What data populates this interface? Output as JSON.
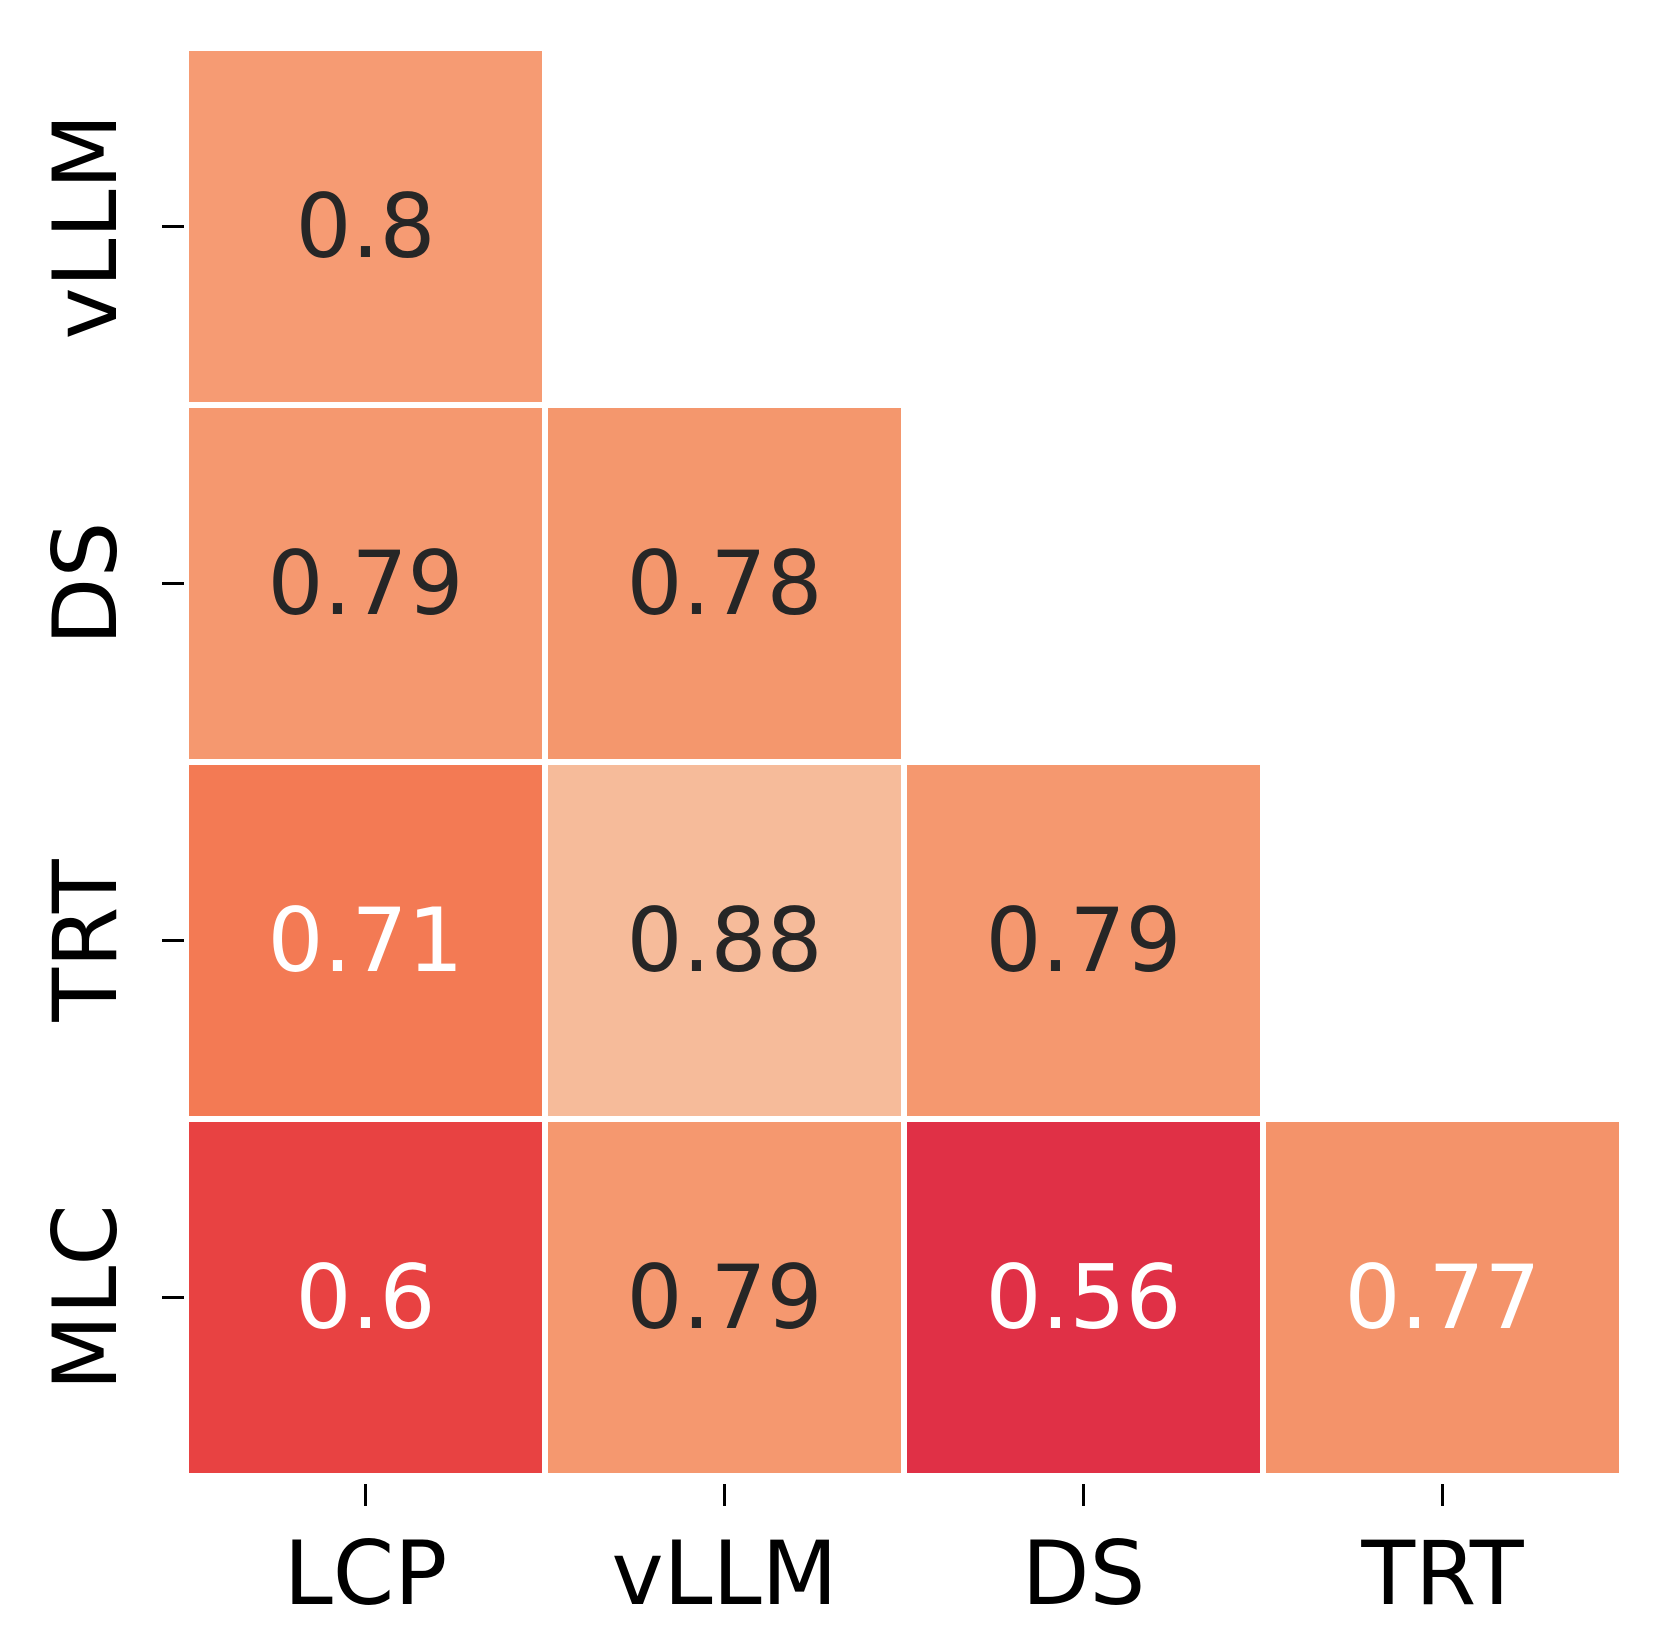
{
  "chart_data": {
    "type": "heatmap",
    "title": "",
    "xlabel": "",
    "ylabel": "",
    "x_categories": [
      "LCP",
      "vLLM",
      "DS",
      "TRT"
    ],
    "y_categories": [
      "vLLM",
      "DS",
      "TRT",
      "MLC"
    ],
    "mask": "upper-triangle",
    "cells": [
      {
        "row": "vLLM",
        "col": "LCP",
        "value": 0.8,
        "label": "0.8",
        "color": "#f69b73",
        "text_color": "#262626"
      },
      {
        "row": "DS",
        "col": "LCP",
        "value": 0.79,
        "label": "0.79",
        "color": "#f5986f",
        "text_color": "#262626"
      },
      {
        "row": "DS",
        "col": "vLLM",
        "value": 0.78,
        "label": "0.78",
        "color": "#f4976d",
        "text_color": "#262626"
      },
      {
        "row": "TRT",
        "col": "LCP",
        "value": 0.71,
        "label": "0.71",
        "color": "#f37a54",
        "text_color": "#ffffff"
      },
      {
        "row": "TRT",
        "col": "vLLM",
        "value": 0.88,
        "label": "0.88",
        "color": "#f6bb9a",
        "text_color": "#262626"
      },
      {
        "row": "TRT",
        "col": "DS",
        "value": 0.79,
        "label": "0.79",
        "color": "#f5986f",
        "text_color": "#262626"
      },
      {
        "row": "MLC",
        "col": "LCP",
        "value": 0.6,
        "label": "0.6",
        "color": "#e84242",
        "text_color": "#ffffff"
      },
      {
        "row": "MLC",
        "col": "vLLM",
        "value": 0.79,
        "label": "0.79",
        "color": "#f5986f",
        "text_color": "#262626"
      },
      {
        "row": "MLC",
        "col": "DS",
        "value": 0.56,
        "label": "0.56",
        "color": "#e03046",
        "text_color": "#ffffff"
      },
      {
        "row": "MLC",
        "col": "TRT",
        "value": 0.77,
        "label": "0.77",
        "color": "#f4936a",
        "text_color": "#ffffff"
      }
    ],
    "grid": false,
    "legend": "none"
  }
}
